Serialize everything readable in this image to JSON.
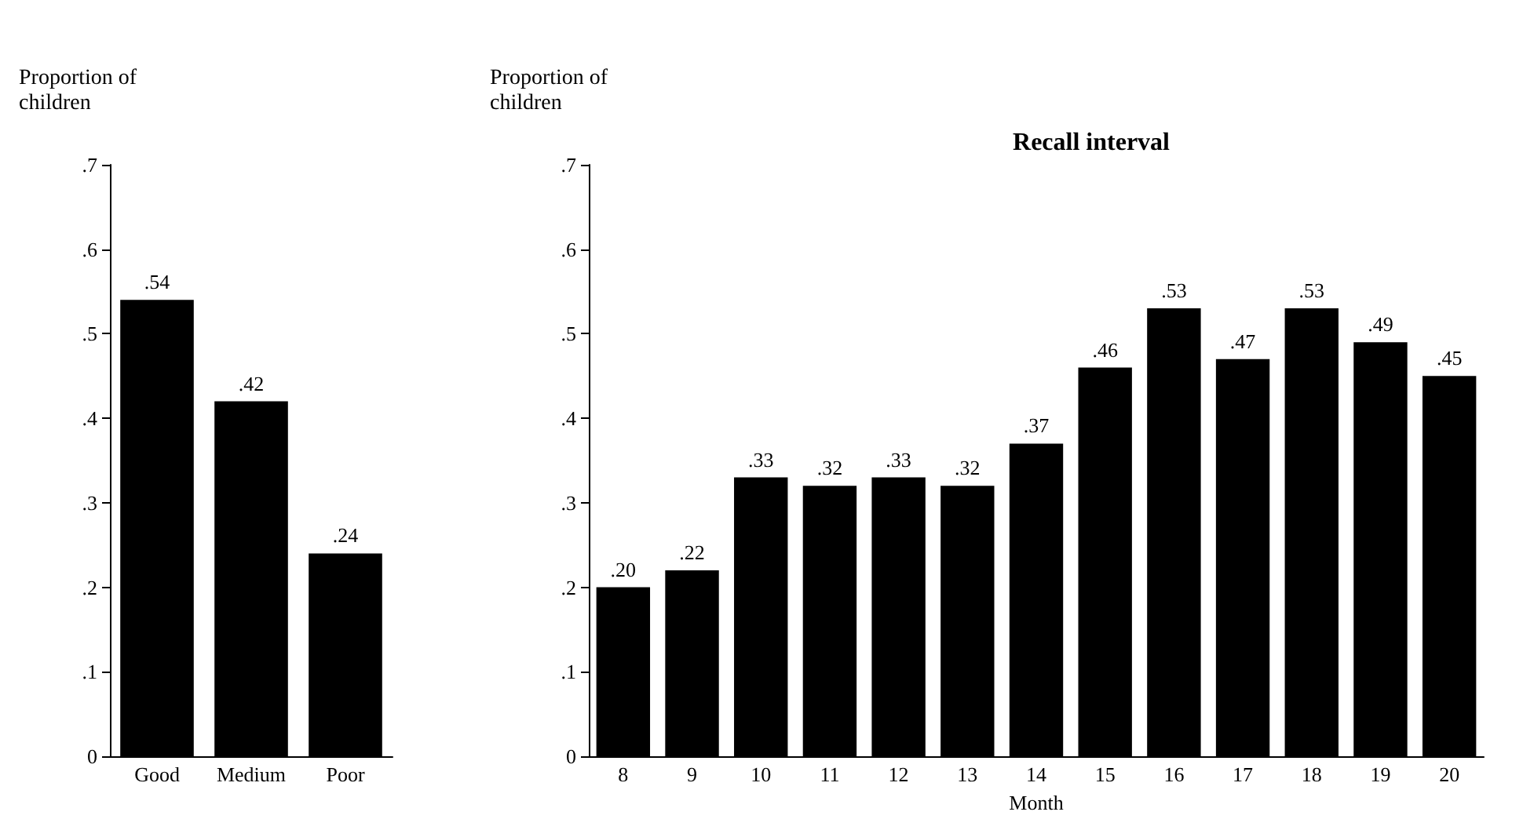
{
  "chart_data": [
    {
      "type": "bar",
      "ylabel": "Proportion of children",
      "categories": [
        "Good",
        "Medium",
        "Poor"
      ],
      "series": [
        {
          "color": "#000000",
          "values": [
            0.54,
            0.42,
            0.24
          ],
          "value_labels": [
            ".54",
            ".42",
            ".24"
          ]
        }
      ],
      "ylim": [
        0,
        0.7
      ],
      "yticks": [
        0,
        {
          "value": 0.1,
          "label": ".1"
        },
        {
          "value": 0.2,
          "label": ".2"
        },
        {
          "value": 0.3,
          "label": ".3"
        },
        {
          "value": 0.4,
          "label": ".4"
        },
        {
          "value": 0.5,
          "label": ".5"
        },
        {
          "value": 0.6,
          "label": ".6"
        },
        {
          "value": 0.7,
          "label": ".7"
        }
      ],
      "grid": false
    },
    {
      "type": "bar",
      "title": "Recall interval",
      "xlabel": "Month",
      "ylabel": "Proportion of children",
      "categories": [
        "8",
        "9",
        "10",
        "11",
        "12",
        "13",
        "14",
        "15",
        "16",
        "17",
        "18",
        "19",
        "20"
      ],
      "series": [
        {
          "color": "#000000",
          "values": [
            0.2,
            0.22,
            0.33,
            0.32,
            0.33,
            0.32,
            0.37,
            0.46,
            0.53,
            0.47,
            0.53,
            0.49,
            0.45
          ],
          "value_labels": [
            ".20",
            ".22",
            ".33",
            ".32",
            ".33",
            ".32",
            ".37",
            ".46",
            ".53",
            ".47",
            ".53",
            ".49",
            ".45"
          ]
        }
      ],
      "ylim": [
        0,
        0.7
      ],
      "yticks": [
        0,
        {
          "value": 0.1,
          "label": ".1"
        },
        {
          "value": 0.2,
          "label": ".2"
        },
        {
          "value": 0.3,
          "label": ".3"
        },
        {
          "value": 0.4,
          "label": ".4"
        },
        {
          "value": 0.5,
          "label": ".5"
        },
        {
          "value": 0.6,
          "label": ".6"
        },
        {
          "value": 0.7,
          "label": ".7"
        }
      ],
      "grid": false
    }
  ]
}
